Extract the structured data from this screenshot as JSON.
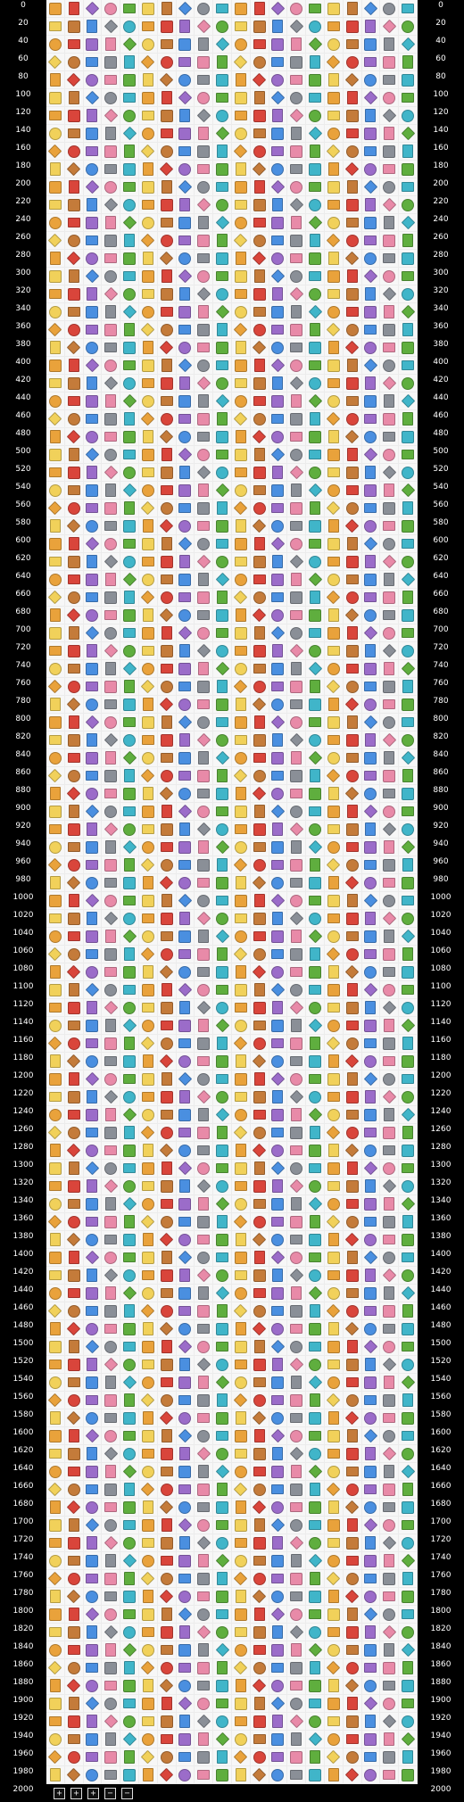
{
  "ruler_labels": [
    "0",
    "20",
    "40",
    "60",
    "80",
    "100",
    "120",
    "140",
    "160",
    "180",
    "200",
    "220",
    "240",
    "260",
    "280",
    "300",
    "320",
    "340",
    "360",
    "380",
    "400",
    "420",
    "440",
    "460",
    "480",
    "500",
    "520",
    "540",
    "560",
    "580",
    "600",
    "620",
    "640",
    "660",
    "680",
    "700",
    "720",
    "740",
    "760",
    "780",
    "800",
    "820",
    "840",
    "860",
    "880",
    "900",
    "920",
    "940",
    "960",
    "980",
    "1000",
    "1020",
    "1040",
    "1060",
    "1080",
    "1100",
    "1120",
    "1140",
    "1160",
    "1180",
    "1200",
    "1220",
    "1240",
    "1260",
    "1280",
    "1300",
    "1320",
    "1340",
    "1360",
    "1380",
    "1400",
    "1420",
    "1440",
    "1460",
    "1480",
    "1500",
    "1520",
    "1540",
    "1560",
    "1580",
    "1600",
    "1620",
    "1640",
    "1660",
    "1680",
    "1700",
    "1720",
    "1740",
    "1760",
    "1780",
    "1800",
    "1820",
    "1840",
    "1860",
    "1880",
    "1900",
    "1920",
    "1940",
    "1960",
    "1980",
    "2000"
  ],
  "bottom_controls": [
    "+",
    "+",
    "+",
    "−",
    "−"
  ],
  "icon_palette": [
    "#e9a23b",
    "#4a8fe0",
    "#5fae3e",
    "#d9453b",
    "#8a8f97",
    "#f1d15a",
    "#9b6cc9",
    "#40b5c9",
    "#c47b3a",
    "#e88aa8"
  ],
  "icon_shapes": [
    "sq",
    "circle",
    "doc",
    "folder",
    "diamond"
  ],
  "icon_names": [
    "page-icon",
    "globe-icon",
    "folder-icon",
    "gear-icon",
    "star-icon",
    "lock-icon",
    "user-icon",
    "chart-icon",
    "mail-icon",
    "calendar-icon",
    "arrow-icon",
    "heart-icon",
    "clock-icon",
    "home-icon",
    "image-icon",
    "pencil-icon",
    "tag-icon",
    "key-icon",
    "printer-icon",
    "shield-icon"
  ],
  "grid_rows": 100,
  "grid_cols": 20
}
